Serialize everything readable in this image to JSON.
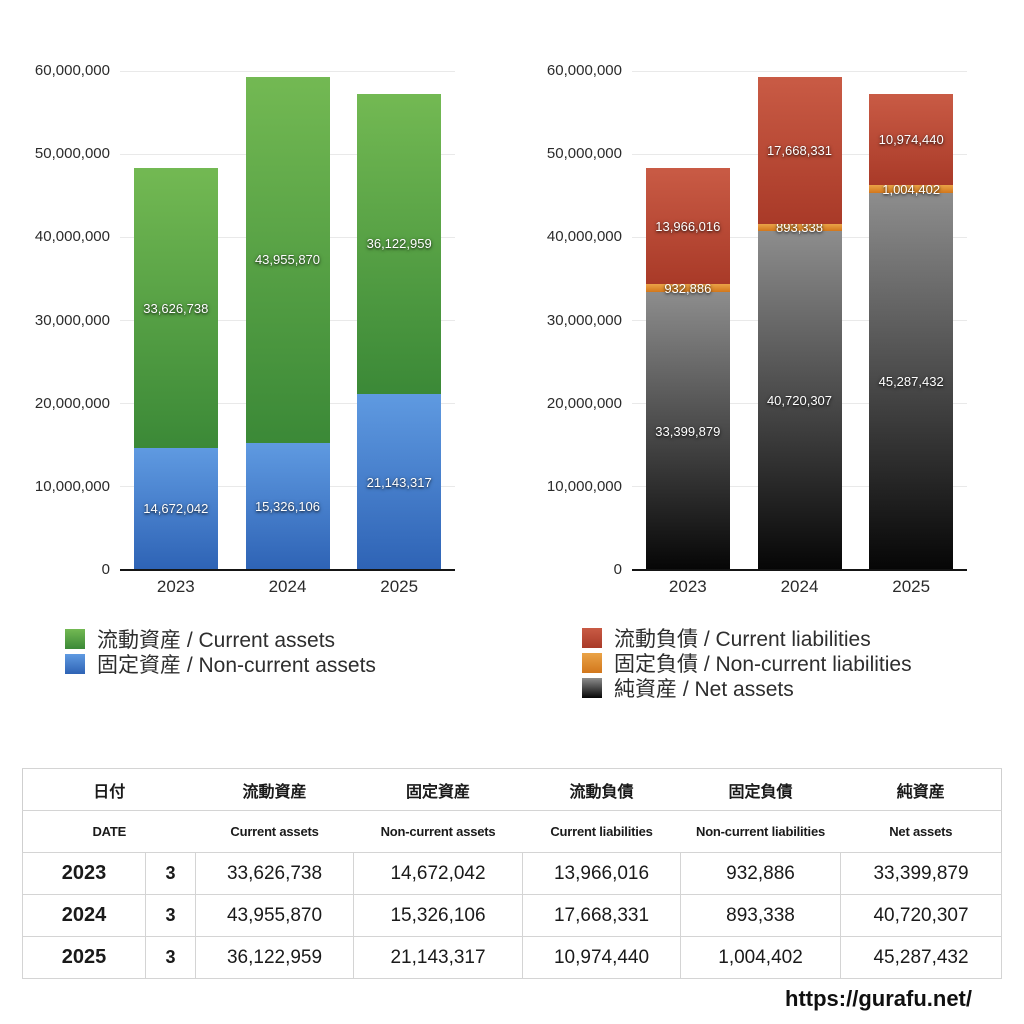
{
  "chart_data": [
    {
      "type": "bar",
      "stacked": true,
      "title": "",
      "categories": [
        "2023",
        "2024",
        "2025"
      ],
      "ylim": [
        0,
        60000000
      ],
      "yticks": [
        {
          "value": 0,
          "label": "0"
        },
        {
          "value": 10000000,
          "label": "10,000,000"
        },
        {
          "value": 20000000,
          "label": "20,000,000"
        },
        {
          "value": 30000000,
          "label": "30,000,000"
        },
        {
          "value": 40000000,
          "label": "40,000,000"
        },
        {
          "value": 50000000,
          "label": "50,000,000"
        },
        {
          "value": 60000000,
          "label": "60,000,000"
        }
      ],
      "grid": "horizontal",
      "legend_position": "bottom-left",
      "series": [
        {
          "name": "固定資産 / Non-current assets",
          "name_jp": "固定資産",
          "name_en": "Non-current assets",
          "values": [
            14672042,
            15326106,
            21143317
          ],
          "value_labels": [
            "14,672,042",
            "15,326,106",
            "21,143,317"
          ],
          "color_top": "#5f9ae1",
          "color_bottom": "#2e63b5"
        },
        {
          "name": "流動資産 / Current assets",
          "name_jp": "流動資産",
          "name_en": "Current assets",
          "values": [
            33626738,
            43955870,
            36122959
          ],
          "value_labels": [
            "33,626,738",
            "43,955,870",
            "36,122,959"
          ],
          "color_top": "#73b953",
          "color_bottom": "#3b8937"
        }
      ]
    },
    {
      "type": "bar",
      "stacked": true,
      "title": "",
      "categories": [
        "2023",
        "2024",
        "2025"
      ],
      "ylim": [
        0,
        60000000
      ],
      "yticks": [
        {
          "value": 0,
          "label": "0"
        },
        {
          "value": 10000000,
          "label": "10,000,000"
        },
        {
          "value": 20000000,
          "label": "20,000,000"
        },
        {
          "value": 30000000,
          "label": "30,000,000"
        },
        {
          "value": 40000000,
          "label": "40,000,000"
        },
        {
          "value": 50000000,
          "label": "50,000,000"
        },
        {
          "value": 60000000,
          "label": "60,000,000"
        }
      ],
      "grid": "horizontal",
      "legend_position": "bottom-left",
      "series": [
        {
          "name": "純資産 / Net assets",
          "name_jp": "純資産",
          "name_en": "Net assets",
          "values": [
            33399879,
            40720307,
            45287432
          ],
          "value_labels": [
            "33,399,879",
            "40,720,307",
            "45,287,432"
          ],
          "color_top": "#8d8d8d",
          "color_bottom": "#060606"
        },
        {
          "name": "固定負債 / Non-current liabilities",
          "name_jp": "固定負債",
          "name_en": "Non-current liabilities",
          "values": [
            932886,
            893338,
            1004402
          ],
          "value_labels": [
            "932,886",
            "893,338",
            "1,004,402"
          ],
          "color_top": "#eaa347",
          "color_bottom": "#d2771c"
        },
        {
          "name": "流動負債 / Current liabilities",
          "name_jp": "流動負債",
          "name_en": "Current liabilities",
          "values": [
            13966016,
            17668331,
            10974440
          ],
          "value_labels": [
            "13,966,016",
            "17,668,331",
            "10,974,440"
          ],
          "color_top": "#c95b45",
          "color_bottom": "#a93a28"
        }
      ]
    }
  ],
  "table": {
    "header_row_jp": [
      "日付",
      "流動資産",
      "固定資産",
      "流動負債",
      "固定負債",
      "純資産"
    ],
    "header_row_en": [
      "DATE",
      "Current assets",
      "Non-current assets",
      "Current liabilities",
      "Non-current liabilities",
      "Net assets"
    ],
    "rows": [
      {
        "year": "2023",
        "month": "3",
        "cells": [
          "33,626,738",
          "14,672,042",
          "13,966,016",
          "932,886",
          "33,399,879"
        ]
      },
      {
        "year": "2024",
        "month": "3",
        "cells": [
          "43,955,870",
          "15,326,106",
          "17,668,331",
          "893,338",
          "40,720,307"
        ]
      },
      {
        "year": "2025",
        "month": "3",
        "cells": [
          "36,122,959",
          "21,143,317",
          "10,974,440",
          "1,004,402",
          "45,287,432"
        ]
      }
    ]
  },
  "footer": {
    "url": "https://gurafu.net/"
  }
}
